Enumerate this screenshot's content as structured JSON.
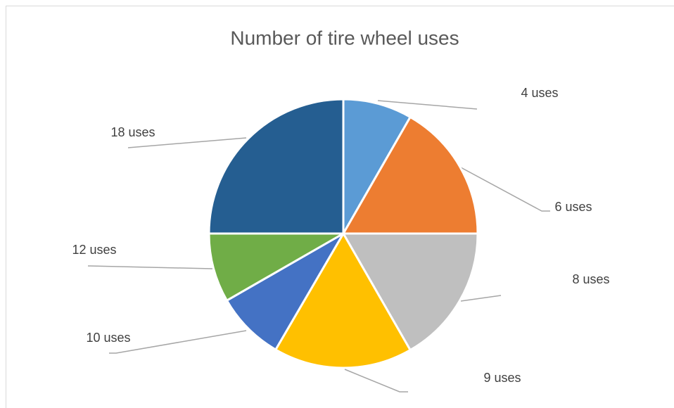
{
  "chart_data": {
    "type": "pie",
    "title": "Number of tire wheel uses",
    "categories": [
      "4 uses",
      "6 uses",
      "8 uses",
      "9 uses",
      "10 uses",
      "12 uses",
      "18 uses"
    ],
    "values": [
      8.3,
      16.7,
      16.7,
      16.7,
      8.3,
      8.3,
      25
    ],
    "colors": [
      "#5b9bd5",
      "#ed7d31",
      "#bfbfbf",
      "#ffc000",
      "#4472c4",
      "#70ad47",
      "#255e91"
    ]
  }
}
